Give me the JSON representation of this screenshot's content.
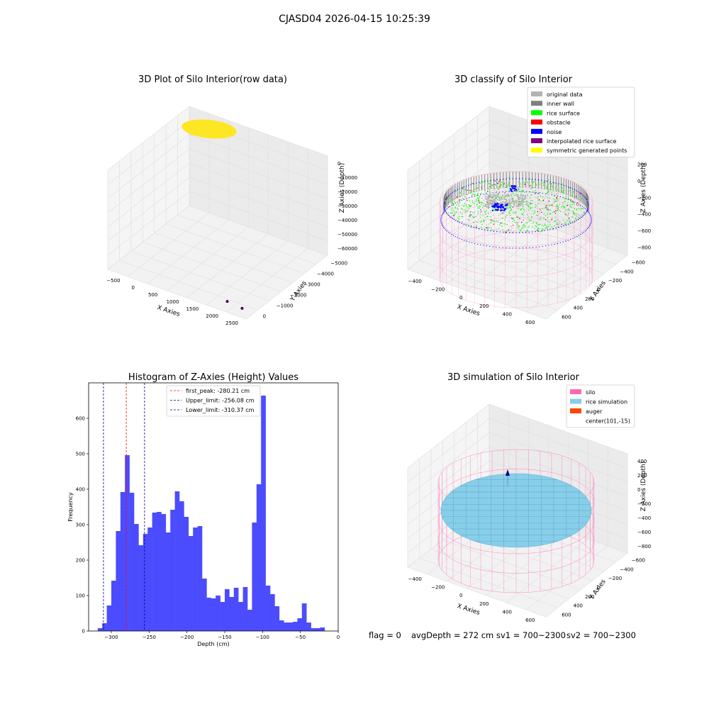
{
  "figure": {
    "suptitle": "CJASD04 2026-04-15 10:25:39",
    "status_line": {
      "flag": "flag = 0",
      "avg_depth": "avgDepth = 272 cm",
      "sv1": "sv1 = 700~2300",
      "sv2": "sv2 = 700~2300"
    }
  },
  "colors": {
    "original_data": "#b3b3b3",
    "inner_wall": "#808080",
    "rice_surface": "#00ff00",
    "obstacle": "#ff0000",
    "noise": "#0000ff",
    "interpolated_rice_surface": "#800080",
    "symmetric_generated_points": "#ffff00",
    "silo": "#ff69b4",
    "rice_simulation": "#87ceeb",
    "auger": "#ff4500",
    "histogram_bars": "#4c4cff",
    "yellow_scatter": "#fde725",
    "purple_scatter": "#440154"
  },
  "chart_data": [
    {
      "type": "scatter",
      "projection": "3d",
      "title": "3D Plot of Silo Interior(row data)",
      "xlabel": "X Axies",
      "ylabel": "Y Axies",
      "zlabel": "Z Axies (Depth)",
      "x_ticks": [
        "−500",
        "0",
        "500",
        "1000",
        "1500",
        "2000",
        "2500"
      ],
      "y_ticks": [
        "0",
        "−1000",
        "−2000",
        "−3000",
        "−4000",
        "−5000"
      ],
      "z_ticks": [
        "0",
        "−10000",
        "−20000",
        "−30000",
        "−40000",
        "−50000",
        "−60000"
      ],
      "points": [
        {
          "x": 2100,
          "y": -4900,
          "z": -62000
        },
        {
          "x": 2500,
          "y": -5000,
          "z": -62000
        }
      ],
      "surface_note": "dense point cloud near z = 0"
    },
    {
      "type": "scatter",
      "projection": "3d",
      "title": "3D classify of Silo Interior",
      "xlabel": "X Axies",
      "ylabel": "Y Axies",
      "zlabel": "Z Axies (Depth)",
      "x_ticks": [
        "−400",
        "−200",
        "0",
        "200",
        "400",
        "600"
      ],
      "y_ticks": [
        "600",
        "400",
        "200",
        "0",
        "−200",
        "−400",
        "−600"
      ],
      "z_ticks": [
        "200",
        "0",
        "−200",
        "−400",
        "−600",
        "−800"
      ],
      "legend_position": "top-right",
      "legend": [
        {
          "label": "original data",
          "color": "#b3b3b3"
        },
        {
          "label": "inner wall",
          "color": "#808080"
        },
        {
          "label": "rice surface",
          "color": "#00ff00"
        },
        {
          "label": "obstacle",
          "color": "#ff0000"
        },
        {
          "label": "noise",
          "color": "#0000ff"
        },
        {
          "label": "interpolated rice surface",
          "color": "#800080"
        },
        {
          "label": "symmetric generated points",
          "color": "#ffff00"
        }
      ]
    },
    {
      "type": "bar",
      "title": "Histogram of Z-Axies (Height) Values",
      "xlabel": "Depth (cm)",
      "ylabel": "Frequency",
      "xlim": [
        -330,
        0
      ],
      "ylim": [
        0,
        700
      ],
      "x_ticks": [
        "−300",
        "−250",
        "−200",
        "−150",
        "−100",
        "−50",
        "0"
      ],
      "y_ticks": [
        "0",
        "100",
        "200",
        "300",
        "400",
        "500",
        "600"
      ],
      "bin_start": -318,
      "bin_width": 6,
      "values": [
        8,
        22,
        72,
        142,
        282,
        392,
        496,
        390,
        302,
        242,
        274,
        292,
        334,
        336,
        330,
        278,
        342,
        394,
        366,
        322,
        268,
        292,
        296,
        148,
        94,
        92,
        100,
        82,
        118,
        96,
        122,
        82,
        124,
        60,
        306,
        414,
        664,
        128,
        104,
        70,
        30,
        24,
        24,
        26,
        36,
        78,
        24,
        8,
        8,
        10
      ],
      "vlines": [
        {
          "label": "first_peak: -280.21 cm",
          "x": -280.21,
          "color": "#ff0000"
        },
        {
          "label": "Upper_limit: -256.08 cm",
          "x": -256.08,
          "color": "#00008b"
        },
        {
          "label": "Lower_limit: -310.37 cm",
          "x": -310.37,
          "color": "#00008b"
        }
      ],
      "legend_position": "top-center"
    },
    {
      "type": "scatter",
      "projection": "3d",
      "title": "3D simulation of Silo Interior",
      "xlabel": "X Axies",
      "ylabel": "Y Axies",
      "zlabel": "Z Axies (Depth)",
      "x_ticks": [
        "−400",
        "−200",
        "0",
        "200",
        "400",
        "600"
      ],
      "y_ticks": [
        "600",
        "400",
        "200",
        "0",
        "−200",
        "−400",
        "−600"
      ],
      "z_ticks": [
        "400",
        "200",
        "0",
        "−200",
        "−400",
        "−600",
        "−800"
      ],
      "legend_position": "top-right",
      "legend": [
        {
          "label": "silo",
          "color": "#ff69b4"
        },
        {
          "label": "rice simulation",
          "color": "#87ceeb"
        },
        {
          "label": "auger",
          "color": "#ff4500"
        },
        {
          "label": "center(101,-15)",
          "color": ""
        }
      ]
    }
  ]
}
